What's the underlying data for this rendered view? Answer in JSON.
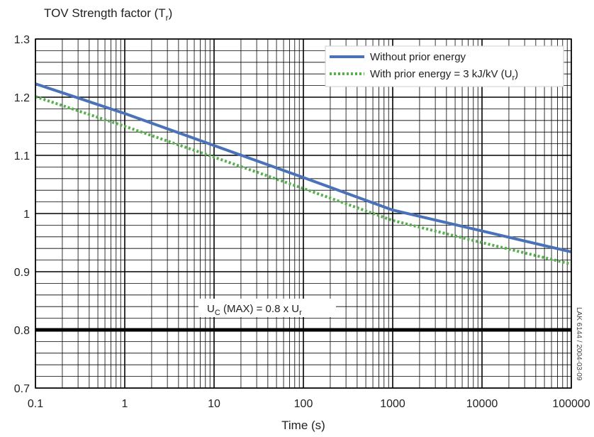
{
  "chart_data": {
    "type": "line",
    "title": "TOV Strength factor (Tr)",
    "title_main": "TOV Strength factor (T",
    "title_sub": "r",
    "title_close": ")",
    "xlabel": "Time (s)",
    "ylabel": "",
    "x_scale": "log",
    "xlim": [
      0.1,
      100000
    ],
    "ylim": [
      0.7,
      1.3
    ],
    "x_ticks": [
      0.1,
      1,
      10,
      100,
      1000,
      10000,
      100000
    ],
    "x_tick_labels": [
      "0.1",
      "1",
      "10",
      "100",
      "1000",
      "10000",
      "100000"
    ],
    "y_ticks": [
      0.7,
      0.8,
      0.9,
      1.0,
      1.1,
      1.2,
      1.3
    ],
    "y_tick_labels": [
      "0.7",
      "0.8",
      "0.9",
      "1",
      "1.1",
      "1.2",
      "1.3"
    ],
    "grid": true,
    "legend_position": "top-right",
    "series": [
      {
        "name": "Without prior energy",
        "color": "#4a72b8",
        "style": "solid",
        "x": [
          0.1,
          1,
          10,
          100,
          1000,
          10000,
          100000
        ],
        "y": [
          1.223,
          1.172,
          1.117,
          1.062,
          1.006,
          0.97,
          0.934
        ]
      },
      {
        "name": "With prior energy = 3 kJ/kV (Ur)",
        "color": "#55b04c",
        "style": "dotted",
        "x": [
          0.1,
          1,
          10,
          100,
          1000,
          10000,
          100000
        ],
        "y": [
          1.201,
          1.15,
          1.097,
          1.043,
          0.988,
          0.95,
          0.913
        ]
      }
    ],
    "legend": {
      "entry1": "Without prior energy",
      "entry2_main": "With prior energy = 3 kJ/kV (U",
      "entry2_sub": "r",
      "entry2_close": ")"
    },
    "reference_line": {
      "y": 0.8,
      "color": "#000000",
      "label_parts": [
        "U",
        "C",
        " (MAX) = 0.8 x U",
        "r"
      ]
    },
    "source_note": "LAK 6144 / 2004-03-09"
  }
}
